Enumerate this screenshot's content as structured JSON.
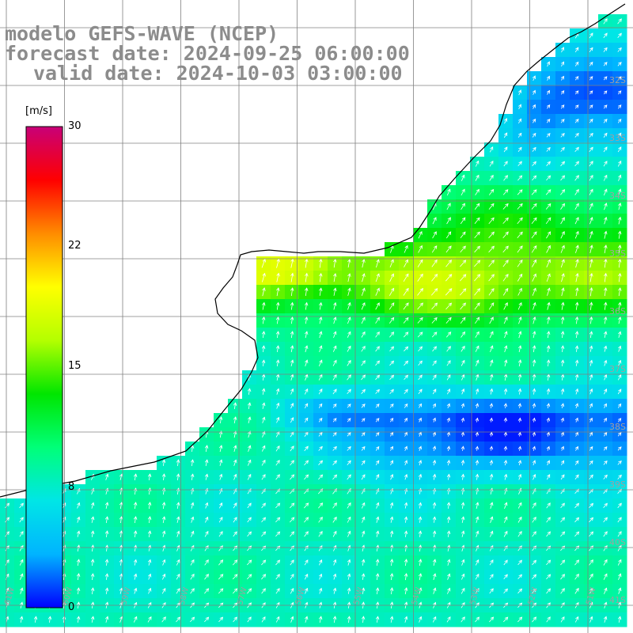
{
  "title": {
    "model": "modelo GEFS-WAVE (NCEP)",
    "forecast": "forecast date: 2024-09-25 06:00:00",
    "valid": "valid date: 2024-10-03 03:00:00"
  },
  "colorbar": {
    "unit": "[m/s]",
    "ticks": [
      "30",
      "22",
      "15",
      "8",
      "0"
    ],
    "min": 0,
    "max": 30,
    "stops": [
      "#0000ff",
      "#00b4ff",
      "#00e6e6",
      "#00ff78",
      "#00e600",
      "#b4ff00",
      "#ffff00",
      "#ff8c00",
      "#ff0000",
      "#c80078"
    ]
  },
  "map": {
    "grid_labels_right": [
      "32S",
      "33S",
      "34S",
      "35S",
      "36S",
      "37S",
      "38S",
      "39S",
      "40S",
      "41S"
    ],
    "grid_labels_bottom": [
      "61W",
      "60W",
      "59W",
      "58W",
      "57W",
      "56W",
      "55W",
      "54W",
      "53W",
      "52W",
      "51W"
    ],
    "land_color": "#ffffff",
    "grid_color": "#808080",
    "coast_color": "#000000"
  }
}
